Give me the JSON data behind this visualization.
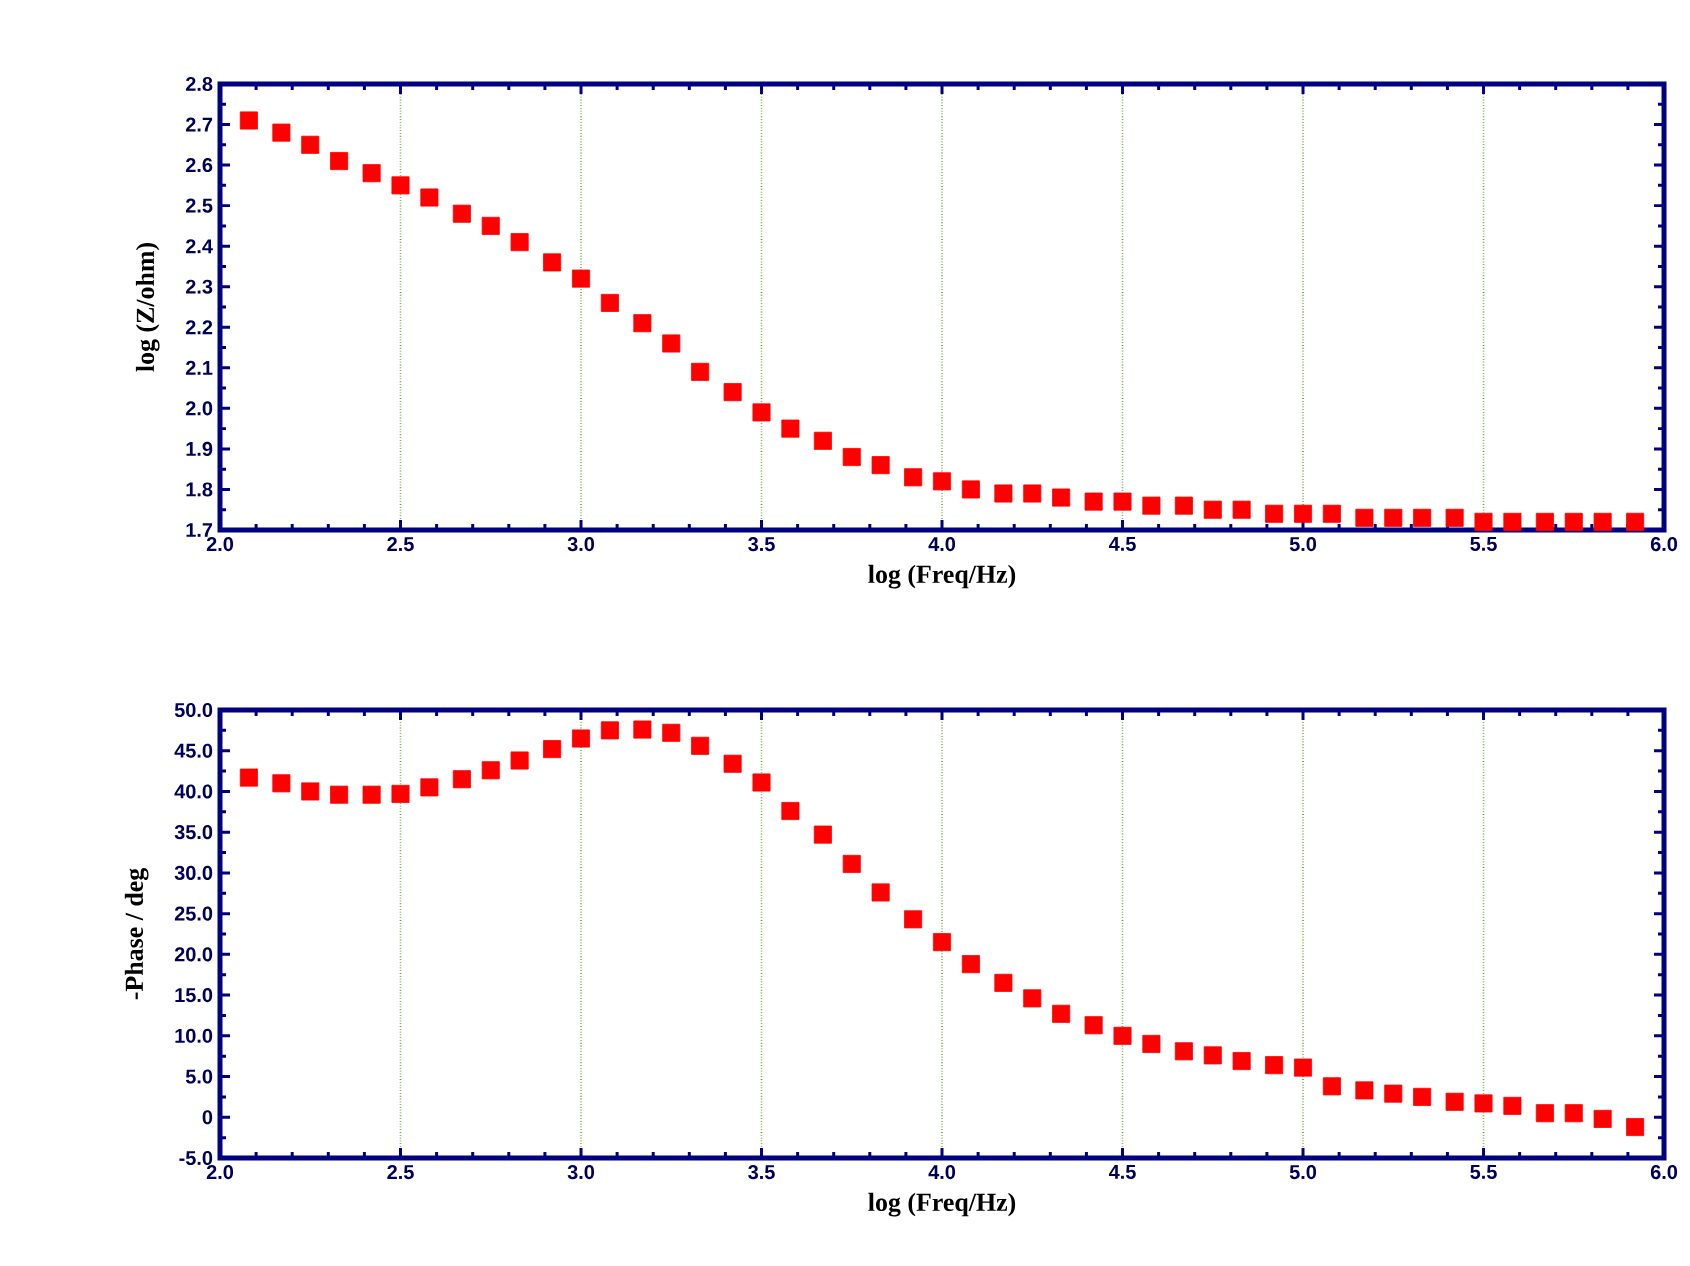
{
  "chart_data": [
    {
      "type": "scatter",
      "xlabel": "log (Freq/Hz)",
      "ylabel": "log (Z/ohm)",
      "color": "#ff0000",
      "marker": "square",
      "grid": "x",
      "x": [
        2.08,
        2.17,
        2.25,
        2.33,
        2.42,
        2.5,
        2.58,
        2.67,
        2.75,
        2.83,
        2.92,
        3.0,
        3.08,
        3.17,
        3.25,
        3.33,
        3.42,
        3.5,
        3.58,
        3.67,
        3.75,
        3.83,
        3.92,
        4.0,
        4.08,
        4.17,
        4.25,
        4.33,
        4.42,
        4.5,
        4.58,
        4.67,
        4.75,
        4.83,
        4.92,
        5.0,
        5.08,
        5.17,
        5.25,
        5.33,
        5.42,
        5.5,
        5.58,
        5.67,
        5.75,
        5.83,
        5.92
      ],
      "values": [
        2.71,
        2.68,
        2.65,
        2.61,
        2.58,
        2.55,
        2.52,
        2.48,
        2.45,
        2.41,
        2.36,
        2.32,
        2.26,
        2.21,
        2.16,
        2.09,
        2.04,
        1.99,
        1.95,
        1.92,
        1.88,
        1.86,
        1.83,
        1.82,
        1.8,
        1.79,
        1.79,
        1.78,
        1.77,
        1.77,
        1.76,
        1.76,
        1.75,
        1.75,
        1.74,
        1.74,
        1.74,
        1.73,
        1.73,
        1.73,
        1.73,
        1.72,
        1.72,
        1.72,
        1.72,
        1.72,
        1.72
      ],
      "xlim": [
        2.0,
        6.0
      ],
      "xticks": [
        {
          "value": 2.0,
          "label": "2.0"
        },
        {
          "value": 2.5,
          "label": "2.5"
        },
        {
          "value": 3.0,
          "label": "3.0"
        },
        {
          "value": 3.5,
          "label": "3.5"
        },
        {
          "value": 4.0,
          "label": "4.0"
        },
        {
          "value": 4.5,
          "label": "4.5"
        },
        {
          "value": 5.0,
          "label": "5.0"
        },
        {
          "value": 5.5,
          "label": "5.5"
        },
        {
          "value": 6.0,
          "label": "6.0"
        }
      ],
      "ylim": [
        1.7,
        2.8
      ],
      "yticks": [
        1.7,
        1.8,
        1.9,
        {
          "value": 2.0,
          "label": "2.0"
        },
        2.1,
        2.2,
        2.3,
        2.4,
        2.5,
        2.6,
        2.7,
        2.8
      ]
    },
    {
      "type": "scatter",
      "xlabel": "log (Freq/Hz)",
      "ylabel": "-Phase / deg",
      "color": "#ff0000",
      "marker": "square",
      "grid": "x",
      "x": [
        2.08,
        2.17,
        2.25,
        2.33,
        2.42,
        2.5,
        2.58,
        2.67,
        2.75,
        2.83,
        2.92,
        3.0,
        3.08,
        3.17,
        3.25,
        3.33,
        3.42,
        3.5,
        3.58,
        3.67,
        3.75,
        3.83,
        3.92,
        4.0,
        4.08,
        4.17,
        4.25,
        4.33,
        4.42,
        4.5,
        4.58,
        4.67,
        4.75,
        4.83,
        4.92,
        5.0,
        5.08,
        5.17,
        5.25,
        5.33,
        5.42,
        5.5,
        5.58,
        5.67,
        5.75,
        5.83,
        5.92
      ],
      "values": [
        41.7,
        41.0,
        40.0,
        39.6,
        39.6,
        39.7,
        40.5,
        41.5,
        42.6,
        43.8,
        45.2,
        46.5,
        47.5,
        47.6,
        47.2,
        45.6,
        43.4,
        41.1,
        37.6,
        34.7,
        31.1,
        27.6,
        24.3,
        21.5,
        18.8,
        16.5,
        14.6,
        12.7,
        11.3,
        10.0,
        9.0,
        8.1,
        7.6,
        6.9,
        6.4,
        6.1,
        3.8,
        3.3,
        2.9,
        2.5,
        1.9,
        1.7,
        1.4,
        0.5,
        0.5,
        -0.2,
        -1.2
      ],
      "xlim": [
        2.0,
        6.0
      ],
      "xticks": [
        {
          "value": 2.0,
          "label": "2.0"
        },
        {
          "value": 2.5,
          "label": "2.5"
        },
        {
          "value": 3.0,
          "label": "3.0"
        },
        {
          "value": 3.5,
          "label": "3.5"
        },
        {
          "value": 4.0,
          "label": "4.0"
        },
        {
          "value": 4.5,
          "label": "4.5"
        },
        {
          "value": 5.0,
          "label": "5.0"
        },
        {
          "value": 5.5,
          "label": "5.5"
        },
        {
          "value": 6.0,
          "label": "6.0"
        }
      ],
      "ylim": [
        -5.0,
        50.0
      ],
      "yticks": [
        {
          "value": -5.0,
          "label": "-5.0"
        },
        0,
        {
          "value": 5.0,
          "label": "5.0"
        },
        {
          "value": 10.0,
          "label": "10.0"
        },
        {
          "value": 15.0,
          "label": "15.0"
        },
        {
          "value": 20.0,
          "label": "20.0"
        },
        {
          "value": 25.0,
          "label": "25.0"
        },
        {
          "value": 30.0,
          "label": "30.0"
        },
        {
          "value": 35.0,
          "label": "35.0"
        },
        {
          "value": 40.0,
          "label": "40.0"
        },
        {
          "value": 45.0,
          "label": "45.0"
        },
        {
          "value": 50.0,
          "label": "50.0"
        }
      ]
    }
  ]
}
